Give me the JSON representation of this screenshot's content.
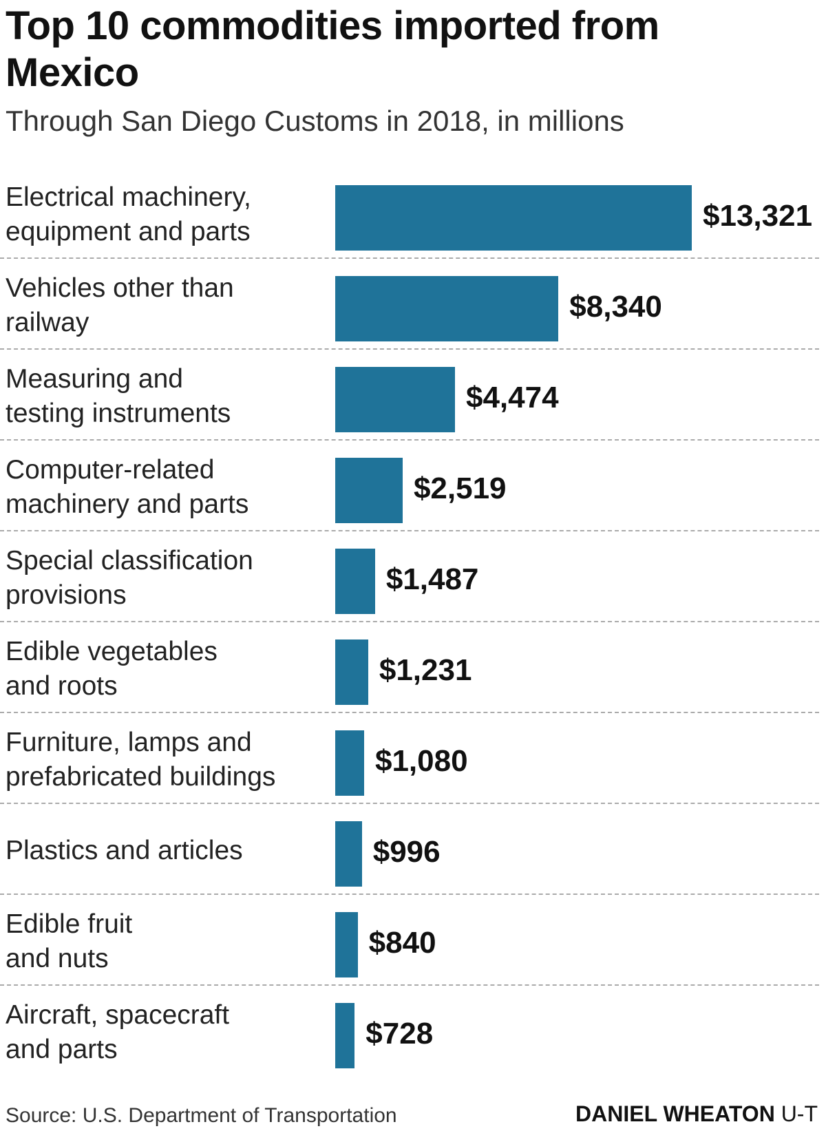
{
  "chart_data": {
    "type": "bar",
    "orientation": "horizontal",
    "title": "Top 10 commodities imported from Mexico",
    "subtitle": "Through San Diego Customs in 2018, in millions",
    "categories": [
      "Electrical machinery,\nequipment and parts",
      "Vehicles other than\nrailway",
      "Measuring and\ntesting instruments",
      "Computer-related\nmachinery and parts",
      "Special classification\nprovisions",
      "Edible vegetables\nand roots",
      "Furniture, lamps and\nprefabricated buildings",
      "Plastics and articles",
      "Edible fruit\nand nuts",
      "Aircraft, spacecraft\nand parts"
    ],
    "values": [
      13321,
      8340,
      4474,
      2519,
      1487,
      1231,
      1080,
      996,
      840,
      728
    ],
    "value_labels": [
      "$13,321",
      "$8,340",
      "$4,474",
      "$2,519",
      "$1,487",
      "$1,231",
      "$1,080",
      "$996",
      "$840",
      "$728"
    ],
    "color": "#1f7399",
    "source": "Source: U.S. Department of Transportation",
    "credit": "DANIEL WHEATON",
    "outlet": "U-T"
  }
}
